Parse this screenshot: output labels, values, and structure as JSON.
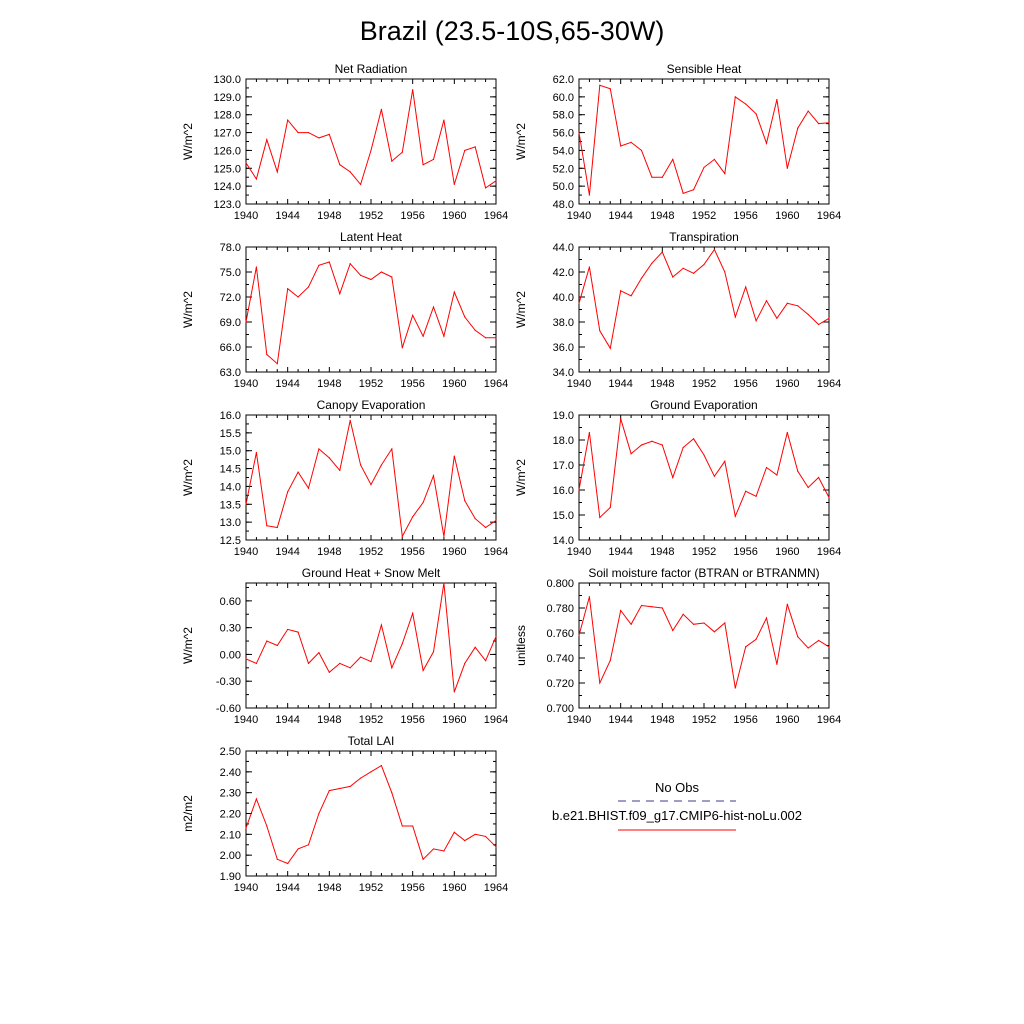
{
  "title": "Brazil (23.5-10S,65-30W)",
  "series_color": "#ff0000",
  "obs_color": "#3b3b8f",
  "legend": {
    "obs_label": "No Obs",
    "model_label": "b.e21.BHIST.f09_g17.CMIP6-hist-noLu.002"
  },
  "chart_data": [
    {
      "type": "line",
      "title": "Net Radiation",
      "ylabel": "W/m^2",
      "xlim": [
        1940,
        1964
      ],
      "ylim": [
        123.0,
        130.0
      ],
      "xticks": [
        "1940",
        "1944",
        "1948",
        "1952",
        "1956",
        "1960",
        "1964"
      ],
      "yticks": [
        "123.0",
        "124.0",
        "125.0",
        "126.0",
        "127.0",
        "128.0",
        "129.0",
        "130.0"
      ],
      "x": [
        1940,
        1941,
        1942,
        1943,
        1944,
        1945,
        1946,
        1947,
        1948,
        1949,
        1950,
        1951,
        1952,
        1953,
        1954,
        1955,
        1956,
        1957,
        1958,
        1959,
        1960,
        1961,
        1962,
        1963,
        1964
      ],
      "values": [
        125.3,
        124.4,
        126.6,
        124.8,
        127.7,
        127.0,
        127.0,
        126.7,
        126.9,
        125.2,
        124.8,
        124.1,
        126.0,
        128.3,
        125.4,
        125.9,
        129.4,
        125.2,
        125.5,
        127.7,
        124.1,
        126.0,
        126.2,
        123.9,
        124.3
      ]
    },
    {
      "type": "line",
      "title": "Sensible Heat",
      "ylabel": "W/m^2",
      "xlim": [
        1940,
        1964
      ],
      "ylim": [
        48.0,
        62.0
      ],
      "xticks": [
        "1940",
        "1944",
        "1948",
        "1952",
        "1956",
        "1960",
        "1964"
      ],
      "yticks": [
        "48.0",
        "50.0",
        "52.0",
        "54.0",
        "56.0",
        "58.0",
        "60.0",
        "62.0"
      ],
      "x": [
        1940,
        1941,
        1942,
        1943,
        1944,
        1945,
        1946,
        1947,
        1948,
        1949,
        1950,
        1951,
        1952,
        1953,
        1954,
        1955,
        1956,
        1957,
        1958,
        1959,
        1960,
        1961,
        1962,
        1963,
        1964
      ],
      "values": [
        56.0,
        49.0,
        61.3,
        60.9,
        54.5,
        54.9,
        54.0,
        51.0,
        51.0,
        53.0,
        49.2,
        49.6,
        52.1,
        53.0,
        51.4,
        60.0,
        59.2,
        58.1,
        54.8,
        59.7,
        52.0,
        56.5,
        58.4,
        57.0,
        57.1
      ]
    },
    {
      "type": "line",
      "title": "Latent Heat",
      "ylabel": "W/m^2",
      "xlim": [
        1940,
        1964
      ],
      "ylim": [
        63.0,
        78.0
      ],
      "xticks": [
        "1940",
        "1944",
        "1948",
        "1952",
        "1956",
        "1960",
        "1964"
      ],
      "yticks": [
        "63.0",
        "66.0",
        "69.0",
        "72.0",
        "75.0",
        "78.0"
      ],
      "x": [
        1940,
        1941,
        1942,
        1943,
        1944,
        1945,
        1946,
        1947,
        1948,
        1949,
        1950,
        1951,
        1952,
        1953,
        1954,
        1955,
        1956,
        1957,
        1958,
        1959,
        1960,
        1961,
        1962,
        1963,
        1964
      ],
      "values": [
        69.0,
        75.6,
        65.1,
        64.0,
        73.0,
        72.0,
        73.2,
        75.8,
        76.2,
        72.4,
        76.0,
        74.6,
        74.1,
        75.0,
        74.4,
        65.9,
        69.8,
        67.3,
        70.8,
        67.3,
        72.6,
        69.6,
        68.0,
        67.1,
        67.1
      ]
    },
    {
      "type": "line",
      "title": "Transpiration",
      "ylabel": "W/m^2",
      "xlim": [
        1940,
        1964
      ],
      "ylim": [
        34.0,
        44.0
      ],
      "xticks": [
        "1940",
        "1944",
        "1948",
        "1952",
        "1956",
        "1960",
        "1964"
      ],
      "yticks": [
        "34.0",
        "36.0",
        "38.0",
        "40.0",
        "42.0",
        "44.0"
      ],
      "x": [
        1940,
        1941,
        1942,
        1943,
        1944,
        1945,
        1946,
        1947,
        1948,
        1949,
        1950,
        1951,
        1952,
        1953,
        1954,
        1955,
        1956,
        1957,
        1958,
        1959,
        1960,
        1961,
        1962,
        1963,
        1964
      ],
      "values": [
        39.5,
        42.4,
        37.3,
        35.9,
        40.5,
        40.1,
        41.5,
        42.7,
        43.6,
        41.6,
        42.3,
        41.9,
        42.6,
        43.8,
        42.0,
        38.4,
        40.8,
        38.1,
        39.7,
        38.3,
        39.5,
        39.3,
        38.6,
        37.8,
        38.3
      ]
    },
    {
      "type": "line",
      "title": "Canopy Evaporation",
      "ylabel": "W/m^2",
      "xlim": [
        1940,
        1964
      ],
      "ylim": [
        12.5,
        16.0
      ],
      "xticks": [
        "1940",
        "1944",
        "1948",
        "1952",
        "1956",
        "1960",
        "1964"
      ],
      "yticks": [
        "12.5",
        "13.0",
        "13.5",
        "14.0",
        "14.5",
        "15.0",
        "15.5",
        "16.0"
      ],
      "x": [
        1940,
        1941,
        1942,
        1943,
        1944,
        1945,
        1946,
        1947,
        1948,
        1949,
        1950,
        1951,
        1952,
        1953,
        1954,
        1955,
        1956,
        1957,
        1958,
        1959,
        1960,
        1961,
        1962,
        1963,
        1964
      ],
      "values": [
        13.5,
        14.95,
        12.9,
        12.85,
        13.85,
        14.4,
        13.95,
        15.05,
        14.8,
        14.45,
        15.85,
        14.6,
        14.05,
        14.6,
        15.05,
        12.6,
        13.15,
        13.55,
        14.3,
        12.6,
        14.85,
        13.6,
        13.1,
        12.85,
        13.05
      ]
    },
    {
      "type": "line",
      "title": "Ground Evaporation",
      "ylabel": "W/m^2",
      "xlim": [
        1940,
        1964
      ],
      "ylim": [
        14.0,
        19.0
      ],
      "xticks": [
        "1940",
        "1944",
        "1948",
        "1952",
        "1956",
        "1960",
        "1964"
      ],
      "yticks": [
        "14.0",
        "15.0",
        "16.0",
        "17.0",
        "18.0",
        "19.0"
      ],
      "x": [
        1940,
        1941,
        1942,
        1943,
        1944,
        1945,
        1946,
        1947,
        1948,
        1949,
        1950,
        1951,
        1952,
        1953,
        1954,
        1955,
        1956,
        1957,
        1958,
        1959,
        1960,
        1961,
        1962,
        1963,
        1964
      ],
      "values": [
        16.0,
        18.3,
        14.9,
        15.3,
        18.85,
        17.45,
        17.8,
        17.95,
        17.8,
        16.5,
        17.7,
        18.05,
        17.4,
        16.55,
        17.15,
        14.95,
        15.95,
        15.75,
        16.9,
        16.6,
        18.3,
        16.75,
        16.1,
        16.5,
        15.7
      ]
    },
    {
      "type": "line",
      "title": "Ground Heat + Snow Melt",
      "ylabel": "W/m^2",
      "xlim": [
        1940,
        1964
      ],
      "ylim": [
        -0.6,
        0.8
      ],
      "xticks": [
        "1940",
        "1944",
        "1948",
        "1952",
        "1956",
        "1960",
        "1964"
      ],
      "yticks": [
        "-0.60",
        "-0.30",
        "0.00",
        "0.30",
        "0.60"
      ],
      "ytick_values": [
        -0.6,
        -0.3,
        0.0,
        0.3,
        0.6
      ],
      "x": [
        1940,
        1941,
        1942,
        1943,
        1944,
        1945,
        1946,
        1947,
        1948,
        1949,
        1950,
        1951,
        1952,
        1953,
        1954,
        1955,
        1956,
        1957,
        1958,
        1959,
        1960,
        1961,
        1962,
        1963,
        1964
      ],
      "values": [
        -0.05,
        -0.1,
        0.15,
        0.1,
        0.28,
        0.25,
        -0.1,
        0.02,
        -0.2,
        -0.1,
        -0.15,
        -0.03,
        -0.08,
        0.33,
        -0.15,
        0.12,
        0.46,
        -0.18,
        0.03,
        0.8,
        -0.42,
        -0.1,
        0.08,
        -0.07,
        0.2
      ]
    },
    {
      "type": "line",
      "title": "Soil moisture factor (BTRAN or BTRANMN)",
      "ylabel": "unitless",
      "xlim": [
        1940,
        1964
      ],
      "ylim": [
        0.7,
        0.8
      ],
      "xticks": [
        "1940",
        "1944",
        "1948",
        "1952",
        "1956",
        "1960",
        "1964"
      ],
      "yticks": [
        "0.700",
        "0.720",
        "0.740",
        "0.760",
        "0.780",
        "0.800"
      ],
      "x": [
        1940,
        1941,
        1942,
        1943,
        1944,
        1945,
        1946,
        1947,
        1948,
        1949,
        1950,
        1951,
        1952,
        1953,
        1954,
        1955,
        1956,
        1957,
        1958,
        1959,
        1960,
        1961,
        1962,
        1963,
        1964
      ],
      "values": [
        0.758,
        0.789,
        0.72,
        0.738,
        0.778,
        0.767,
        0.782,
        0.781,
        0.78,
        0.762,
        0.775,
        0.767,
        0.768,
        0.761,
        0.768,
        0.716,
        0.749,
        0.755,
        0.772,
        0.735,
        0.783,
        0.757,
        0.748,
        0.754,
        0.749
      ]
    },
    {
      "type": "line",
      "title": "Total LAI",
      "ylabel": "m2/m2",
      "xlim": [
        1940,
        1964
      ],
      "ylim": [
        1.9,
        2.5
      ],
      "xticks": [
        "1940",
        "1944",
        "1948",
        "1952",
        "1956",
        "1960",
        "1964"
      ],
      "yticks": [
        "1.90",
        "2.00",
        "2.10",
        "2.20",
        "2.30",
        "2.40",
        "2.50"
      ],
      "x": [
        1940,
        1941,
        1942,
        1943,
        1944,
        1945,
        1946,
        1947,
        1948,
        1949,
        1950,
        1951,
        1952,
        1953,
        1954,
        1955,
        1956,
        1957,
        1958,
        1959,
        1960,
        1961,
        1962,
        1963,
        1964
      ],
      "values": [
        2.13,
        2.27,
        2.14,
        1.98,
        1.96,
        2.03,
        2.05,
        2.2,
        2.31,
        2.32,
        2.33,
        2.37,
        2.4,
        2.43,
        2.3,
        2.14,
        2.14,
        1.98,
        2.03,
        2.02,
        2.11,
        2.07,
        2.1,
        2.09,
        2.04
      ]
    }
  ]
}
